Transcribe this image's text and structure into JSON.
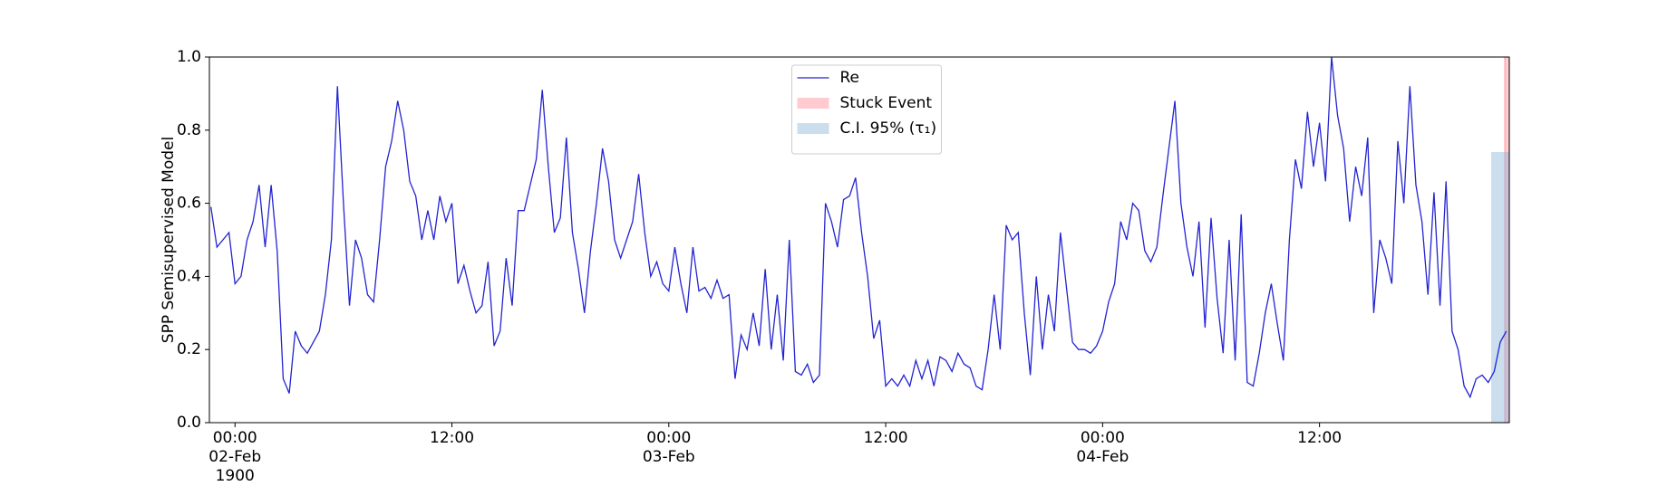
{
  "chart_data": {
    "type": "line",
    "y_label": "SPP Semisupervised Model",
    "xlim": [
      "1900-02-01 22:35",
      "1900-02-04 22:30"
    ],
    "ylim": [
      0,
      1
    ],
    "yticks": [
      {
        "value": 0,
        "label": "0.0"
      },
      0.2,
      0.4,
      0.6,
      0.8,
      {
        "value": 1,
        "label": "1.0"
      }
    ],
    "xticks": [
      {
        "value": "1900-02-02 00:00",
        "label": "00:00\n02-Feb\n1900"
      },
      {
        "value": "1900-02-02 12:00",
        "label": "12:00"
      },
      {
        "value": "1900-02-03 00:00",
        "label": "00:00\n03-Feb"
      },
      {
        "value": "1900-02-03 12:00",
        "label": "12:00"
      },
      {
        "value": "1900-02-04 00:00",
        "label": "00:00\n04-Feb"
      },
      {
        "value": "1900-02-04 12:00",
        "label": "12:00"
      }
    ],
    "legend": "upper center",
    "x": [
      "1900-02-01 22:40",
      "1900-02-01 23:00",
      "1900-02-01 23:20",
      "1900-02-01 23:40",
      "1900-02-02 00:00",
      "1900-02-02 00:20",
      "1900-02-02 00:40",
      "1900-02-02 01:00",
      "1900-02-02 01:20",
      "1900-02-02 01:40",
      "1900-02-02 02:00",
      "1900-02-02 02:20",
      "1900-02-02 02:40",
      "1900-02-02 03:00",
      "1900-02-02 03:20",
      "1900-02-02 03:40",
      "1900-02-02 04:00",
      "1900-02-02 04:20",
      "1900-02-02 04:40",
      "1900-02-02 05:00",
      "1900-02-02 05:20",
      "1900-02-02 05:40",
      "1900-02-02 06:00",
      "1900-02-02 06:20",
      "1900-02-02 06:40",
      "1900-02-02 07:00",
      "1900-02-02 07:20",
      "1900-02-02 07:40",
      "1900-02-02 08:00",
      "1900-02-02 08:20",
      "1900-02-02 08:40",
      "1900-02-02 09:00",
      "1900-02-02 09:20",
      "1900-02-02 09:40",
      "1900-02-02 10:00",
      "1900-02-02 10:20",
      "1900-02-02 10:40",
      "1900-02-02 11:00",
      "1900-02-02 11:20",
      "1900-02-02 11:40",
      "1900-02-02 12:00",
      "1900-02-02 12:20",
      "1900-02-02 12:40",
      "1900-02-02 13:00",
      "1900-02-02 13:20",
      "1900-02-02 13:40",
      "1900-02-02 14:00",
      "1900-02-02 14:20",
      "1900-02-02 14:40",
      "1900-02-02 15:00",
      "1900-02-02 15:20",
      "1900-02-02 15:40",
      "1900-02-02 16:00",
      "1900-02-02 16:20",
      "1900-02-02 16:40",
      "1900-02-02 17:00",
      "1900-02-02 17:20",
      "1900-02-02 17:40",
      "1900-02-02 18:00",
      "1900-02-02 18:20",
      "1900-02-02 18:40",
      "1900-02-02 19:00",
      "1900-02-02 19:20",
      "1900-02-02 19:40",
      "1900-02-02 20:00",
      "1900-02-02 20:20",
      "1900-02-02 20:40",
      "1900-02-02 21:00",
      "1900-02-02 21:20",
      "1900-02-02 21:40",
      "1900-02-02 22:00",
      "1900-02-02 22:20",
      "1900-02-02 22:40",
      "1900-02-02 23:00",
      "1900-02-02 23:20",
      "1900-02-02 23:40",
      "1900-02-03 00:00",
      "1900-02-03 00:20",
      "1900-02-03 00:40",
      "1900-02-03 01:00",
      "1900-02-03 01:20",
      "1900-02-03 01:40",
      "1900-02-03 02:00",
      "1900-02-03 02:20",
      "1900-02-03 02:40",
      "1900-02-03 03:00",
      "1900-02-03 03:20",
      "1900-02-03 03:40",
      "1900-02-03 04:00",
      "1900-02-03 04:20",
      "1900-02-03 04:40",
      "1900-02-03 05:00",
      "1900-02-03 05:20",
      "1900-02-03 05:40",
      "1900-02-03 06:00",
      "1900-02-03 06:20",
      "1900-02-03 06:40",
      "1900-02-03 07:00",
      "1900-02-03 07:20",
      "1900-02-03 07:40",
      "1900-02-03 08:00",
      "1900-02-03 08:20",
      "1900-02-03 08:40",
      "1900-02-03 09:00",
      "1900-02-03 09:20",
      "1900-02-03 09:40",
      "1900-02-03 10:00",
      "1900-02-03 10:20",
      "1900-02-03 10:40",
      "1900-02-03 11:00",
      "1900-02-03 11:20",
      "1900-02-03 11:40",
      "1900-02-03 12:00",
      "1900-02-03 12:20",
      "1900-02-03 12:40",
      "1900-02-03 13:00",
      "1900-02-03 13:20",
      "1900-02-03 13:40",
      "1900-02-03 14:00",
      "1900-02-03 14:20",
      "1900-02-03 14:40",
      "1900-02-03 15:00",
      "1900-02-03 15:20",
      "1900-02-03 15:40",
      "1900-02-03 16:00",
      "1900-02-03 16:20",
      "1900-02-03 16:40",
      "1900-02-03 17:00",
      "1900-02-03 17:20",
      "1900-02-03 17:40",
      "1900-02-03 18:00",
      "1900-02-03 18:20",
      "1900-02-03 18:40",
      "1900-02-03 19:00",
      "1900-02-03 19:20",
      "1900-02-03 19:40",
      "1900-02-03 20:00",
      "1900-02-03 20:20",
      "1900-02-03 20:40",
      "1900-02-03 21:00",
      "1900-02-03 21:20",
      "1900-02-03 21:40",
      "1900-02-03 22:00",
      "1900-02-03 22:20",
      "1900-02-03 22:40",
      "1900-02-03 23:00",
      "1900-02-03 23:20",
      "1900-02-03 23:40",
      "1900-02-04 00:00",
      "1900-02-04 00:20",
      "1900-02-04 00:40",
      "1900-02-04 01:00",
      "1900-02-04 01:20",
      "1900-02-04 01:40",
      "1900-02-04 02:00",
      "1900-02-04 02:20",
      "1900-02-04 02:40",
      "1900-02-04 03:00",
      "1900-02-04 03:20",
      "1900-02-04 03:40",
      "1900-02-04 04:00",
      "1900-02-04 04:20",
      "1900-02-04 04:40",
      "1900-02-04 05:00",
      "1900-02-04 05:20",
      "1900-02-04 05:40",
      "1900-02-04 06:00",
      "1900-02-04 06:20",
      "1900-02-04 06:40",
      "1900-02-04 07:00",
      "1900-02-04 07:20",
      "1900-02-04 07:40",
      "1900-02-04 08:00",
      "1900-02-04 08:20",
      "1900-02-04 08:40",
      "1900-02-04 09:00",
      "1900-02-04 09:20",
      "1900-02-04 09:40",
      "1900-02-04 10:00",
      "1900-02-04 10:20",
      "1900-02-04 10:40",
      "1900-02-04 11:00",
      "1900-02-04 11:20",
      "1900-02-04 11:40",
      "1900-02-04 12:00",
      "1900-02-04 12:20",
      "1900-02-04 12:40",
      "1900-02-04 13:00",
      "1900-02-04 13:20",
      "1900-02-04 13:40",
      "1900-02-04 14:00",
      "1900-02-04 14:20",
      "1900-02-04 14:40",
      "1900-02-04 15:00",
      "1900-02-04 15:20",
      "1900-02-04 15:40",
      "1900-02-04 16:00",
      "1900-02-04 16:20",
      "1900-02-04 16:40",
      "1900-02-04 17:00",
      "1900-02-04 17:20",
      "1900-02-04 17:40",
      "1900-02-04 18:00",
      "1900-02-04 18:20",
      "1900-02-04 18:40",
      "1900-02-04 19:00",
      "1900-02-04 19:20",
      "1900-02-04 19:40",
      "1900-02-04 20:00",
      "1900-02-04 20:20",
      "1900-02-04 20:40",
      "1900-02-04 21:00",
      "1900-02-04 21:20",
      "1900-02-04 21:40",
      "1900-02-04 22:00",
      "1900-02-04 22:20"
    ],
    "series": [
      {
        "name": "Re",
        "color": "#2323d2",
        "values": [
          0.59,
          0.48,
          0.5,
          0.52,
          0.38,
          0.4,
          0.5,
          0.55,
          0.65,
          0.48,
          0.65,
          0.47,
          0.12,
          0.08,
          0.25,
          0.21,
          0.19,
          0.22,
          0.25,
          0.35,
          0.5,
          0.92,
          0.6,
          0.32,
          0.5,
          0.45,
          0.35,
          0.33,
          0.5,
          0.7,
          0.77,
          0.88,
          0.8,
          0.66,
          0.62,
          0.5,
          0.58,
          0.5,
          0.62,
          0.55,
          0.6,
          0.38,
          0.43,
          0.36,
          0.3,
          0.32,
          0.44,
          0.21,
          0.25,
          0.45,
          0.32,
          0.58,
          0.58,
          0.65,
          0.72,
          0.91,
          0.7,
          0.52,
          0.56,
          0.78,
          0.52,
          0.42,
          0.3,
          0.47,
          0.6,
          0.75,
          0.66,
          0.5,
          0.45,
          0.5,
          0.55,
          0.68,
          0.52,
          0.4,
          0.44,
          0.38,
          0.36,
          0.48,
          0.38,
          0.3,
          0.48,
          0.36,
          0.37,
          0.34,
          0.39,
          0.34,
          0.35,
          0.12,
          0.24,
          0.2,
          0.3,
          0.21,
          0.42,
          0.2,
          0.35,
          0.17,
          0.5,
          0.14,
          0.13,
          0.16,
          0.11,
          0.13,
          0.6,
          0.55,
          0.48,
          0.61,
          0.62,
          0.67,
          0.52,
          0.4,
          0.23,
          0.28,
          0.1,
          0.12,
          0.1,
          0.13,
          0.1,
          0.17,
          0.12,
          0.17,
          0.1,
          0.18,
          0.17,
          0.14,
          0.19,
          0.16,
          0.15,
          0.1,
          0.09,
          0.2,
          0.35,
          0.2,
          0.54,
          0.5,
          0.52,
          0.3,
          0.13,
          0.4,
          0.2,
          0.35,
          0.25,
          0.52,
          0.37,
          0.22,
          0.2,
          0.2,
          0.19,
          0.21,
          0.25,
          0.33,
          0.38,
          0.55,
          0.5,
          0.6,
          0.58,
          0.47,
          0.44,
          0.48,
          0.62,
          0.75,
          0.88,
          0.6,
          0.48,
          0.4,
          0.55,
          0.26,
          0.56,
          0.34,
          0.19,
          0.5,
          0.17,
          0.57,
          0.11,
          0.1,
          0.19,
          0.3,
          0.38,
          0.27,
          0.17,
          0.5,
          0.72,
          0.64,
          0.85,
          0.7,
          0.82,
          0.66,
          1.0,
          0.84,
          0.75,
          0.55,
          0.7,
          0.62,
          0.78,
          0.3,
          0.5,
          0.45,
          0.38,
          0.77,
          0.6,
          0.92,
          0.65,
          0.55,
          0.35,
          0.63,
          0.32,
          0.66,
          0.25,
          0.2,
          0.1,
          0.07,
          0.12,
          0.13,
          0.11,
          0.14,
          0.22,
          0.25
        ]
      }
    ],
    "spans": [
      {
        "name": "Stuck Event",
        "color": "#ff8c9a",
        "start": "1900-02-04 22:15",
        "end": "1900-02-04 22:30"
      },
      {
        "name": "C.I. 95% (τ₁)",
        "color": "#8ab6d9",
        "start": "1900-02-04 21:30",
        "end": "1900-02-04 22:30",
        "top": 0.74
      }
    ]
  }
}
